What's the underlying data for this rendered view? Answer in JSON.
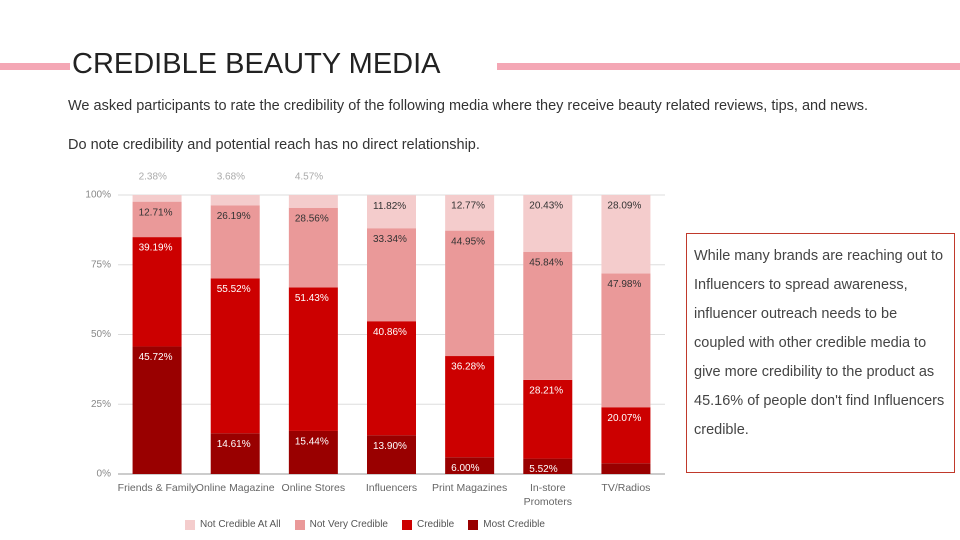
{
  "header": {
    "title": "CREDIBLE BEAUTY MEDIA",
    "description": [
      "We asked participants to rate the credibility of the following media where they receive beauty related reviews, tips, and news.",
      "Do note credibility and potential reach has no direct relationship."
    ]
  },
  "callout": "While many brands are reaching out to Influencers to spread awareness, influencer outreach needs to be coupled with other credible media to give more credibility to the product as 45.16% of people don't find Influencers credible.",
  "chart_data": {
    "type": "stacked_bar",
    "categories": [
      "Friends & Family",
      "Online Magazine",
      "Online Stores",
      "Influencers",
      "Print Magazines",
      "In-store Promoters",
      "TV/Radios"
    ],
    "series": [
      {
        "name": "Not Credible At All",
        "color": "#f4cccc",
        "values": [
          2.38,
          3.68,
          4.57,
          11.82,
          12.77,
          20.43,
          28.09
        ],
        "value_labels": [
          "2.38%",
          "3.68%",
          "4.57%",
          "11.82%",
          "12.77%",
          "20.43%",
          "28.09%"
        ]
      },
      {
        "name": "Not Very Credible",
        "color": "#ea9999",
        "values": [
          12.71,
          26.19,
          28.56,
          33.34,
          44.95,
          45.84,
          47.98
        ],
        "value_labels": [
          "12.71%",
          "26.19%",
          "28.56%",
          "33.34%",
          "44.95%",
          "45.84%",
          "47.98%"
        ]
      },
      {
        "name": "Credible",
        "color": "#cc0000",
        "values": [
          39.19,
          55.52,
          51.43,
          40.86,
          36.28,
          28.21,
          20.07
        ],
        "value_labels": [
          "39.19%",
          "55.52%",
          "51.43%",
          "40.86%",
          "36.28%",
          "28.21%",
          "20.07%"
        ]
      },
      {
        "name": "Most Credible",
        "color": "#990000",
        "values": [
          45.72,
          14.61,
          15.44,
          13.9,
          6.0,
          5.52,
          3.86
        ],
        "value_labels": [
          "45.72%",
          "14.61%",
          "15.44%",
          "13.90%",
          "6.00%",
          "5.52%",
          "3.86%"
        ]
      }
    ],
    "ylim": [
      0,
      100
    ],
    "yticks": [
      {
        "value": 0,
        "label": "0%"
      },
      {
        "value": 25,
        "label": "25%"
      },
      {
        "value": 50,
        "label": "50%"
      },
      {
        "value": 75,
        "label": "75%"
      },
      {
        "value": 100,
        "label": "100%"
      }
    ],
    "grid": true,
    "legend": "bottom"
  }
}
